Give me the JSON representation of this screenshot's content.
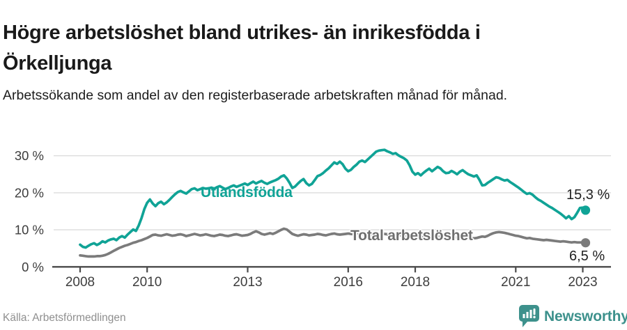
{
  "header": {
    "title": "Högre arbetslöshet bland utrikes- än inrikesfödda i Örkelljunga",
    "subtitle": "Arbetssökande som andel av den registerbaserade arbetskraften månad för månad."
  },
  "footer": {
    "source": "Källa: Arbetsförmedlingen",
    "brand_name": "Newsworthy",
    "brand_icon": "newsworthy-speech-bubble-bar-chart-icon"
  },
  "colors": {
    "series1": "#10a396",
    "series2": "#7b7b7b",
    "grid": "#dcdcdc",
    "axis": "#4a4a4a",
    "tick_text": "#3d3d3d",
    "brand": "#3d918c",
    "title_text": "#1a1a1a",
    "source_text": "#8f8f8f"
  },
  "chart_data": {
    "type": "line",
    "title": "Högre arbetslöshet bland utrikes- än inrikesfödda i Örkelljunga",
    "subtitle": "Arbetssökande som andel av den registerbaserade arbetskraften månad för månad.",
    "unit": "%",
    "x_start": 2008.0,
    "x_end": 2023.083,
    "points_per_year": 12,
    "x_ticks": [
      2008,
      2010,
      2013,
      2016,
      2018,
      2021,
      2023
    ],
    "x_tick_labels": [
      "2008",
      "2010",
      "2013",
      "2016",
      "2018",
      "2021",
      "2023"
    ],
    "y_ticks": [
      0,
      10,
      20,
      30
    ],
    "y_tick_labels": [
      "0 %",
      "10 %",
      "20 %",
      "30 %"
    ],
    "ylim": [
      0,
      33
    ],
    "grid": "horizontal",
    "legend_position": "inline-labels",
    "series": [
      {
        "name": "Utlandsfödda",
        "color": "#10a396",
        "end_label": "15,3 %",
        "end_value": 15.3,
        "values": [
          6.0,
          5.4,
          5.2,
          5.7,
          6.1,
          6.4,
          5.9,
          6.3,
          6.9,
          6.6,
          7.1,
          7.4,
          7.6,
          7.2,
          7.9,
          8.3,
          7.9,
          8.7,
          9.4,
          10.1,
          9.7,
          11.2,
          13.2,
          15.6,
          17.3,
          18.2,
          17.1,
          16.4,
          17.2,
          17.6,
          16.9,
          17.4,
          18.1,
          18.9,
          19.6,
          20.2,
          20.5,
          20.1,
          19.8,
          20.4,
          21.0,
          21.2,
          20.7,
          21.0,
          21.3,
          21.1,
          21.2,
          21.4,
          21.1,
          21.5,
          21.8,
          21.4,
          21.0,
          21.3,
          21.7,
          22.0,
          21.6,
          21.9,
          22.2,
          22.5,
          22.1,
          22.6,
          23.0,
          22.5,
          22.9,
          23.2,
          22.7,
          22.4,
          22.8,
          23.1,
          23.4,
          23.8,
          24.4,
          24.7,
          23.9,
          22.7,
          21.3,
          21.7,
          22.5,
          23.2,
          23.7,
          22.6,
          22.0,
          22.4,
          23.4,
          24.5,
          24.8,
          25.3,
          26.0,
          26.6,
          27.4,
          28.2,
          27.8,
          28.4,
          27.7,
          26.5,
          25.8,
          26.2,
          27.0,
          27.6,
          28.4,
          28.7,
          28.3,
          29.0,
          29.7,
          30.4,
          31.1,
          31.4,
          31.5,
          31.6,
          31.2,
          30.9,
          30.5,
          30.7,
          30.1,
          29.7,
          29.3,
          28.7,
          27.4,
          25.7,
          24.9,
          25.3,
          24.7,
          25.4,
          26.0,
          26.5,
          25.8,
          26.4,
          27.0,
          26.6,
          25.8,
          25.3,
          25.4,
          25.9,
          25.5,
          25.0,
          25.7,
          26.1,
          25.5,
          25.0,
          24.7,
          24.4,
          24.7,
          23.5,
          22.0,
          22.1,
          22.7,
          23.2,
          23.7,
          24.2,
          24.0,
          23.6,
          23.3,
          23.5,
          22.9,
          22.4,
          21.9,
          21.4,
          20.8,
          20.2,
          19.7,
          19.9,
          19.5,
          18.8,
          18.2,
          17.8,
          17.3,
          16.8,
          16.3,
          15.9,
          15.4,
          14.9,
          14.4,
          13.8,
          13.1,
          13.7,
          12.9,
          13.4,
          14.6,
          15.9,
          16.0,
          15.3
        ]
      },
      {
        "name": "Total arbetslöshet",
        "color": "#7b7b7b",
        "end_label": "6,5 %",
        "end_value": 6.5,
        "values": [
          3.1,
          3.0,
          2.9,
          2.8,
          2.8,
          2.8,
          2.9,
          2.9,
          3.0,
          3.2,
          3.5,
          3.9,
          4.3,
          4.7,
          5.1,
          5.4,
          5.7,
          5.9,
          6.2,
          6.5,
          6.7,
          7.0,
          7.2,
          7.5,
          7.8,
          8.2,
          8.6,
          8.7,
          8.5,
          8.4,
          8.6,
          8.8,
          8.6,
          8.4,
          8.5,
          8.7,
          8.8,
          8.6,
          8.3,
          8.5,
          8.7,
          8.9,
          8.7,
          8.5,
          8.6,
          8.8,
          8.6,
          8.4,
          8.3,
          8.5,
          8.7,
          8.6,
          8.4,
          8.3,
          8.5,
          8.7,
          8.8,
          8.6,
          8.4,
          8.5,
          8.6,
          8.9,
          9.3,
          9.6,
          9.3,
          8.9,
          8.7,
          8.9,
          9.1,
          8.9,
          9.2,
          9.6,
          10.0,
          10.3,
          10.1,
          9.5,
          8.9,
          8.6,
          8.4,
          8.6,
          8.8,
          8.7,
          8.5,
          8.6,
          8.7,
          8.9,
          8.8,
          8.6,
          8.5,
          8.7,
          8.9,
          9.0,
          8.8,
          8.7,
          8.8,
          8.9,
          9.0,
          8.9,
          8.8,
          8.9,
          9.0,
          8.9,
          8.8,
          8.7,
          8.8,
          8.9,
          8.8,
          8.7,
          8.8,
          8.9,
          8.8,
          8.7,
          8.6,
          8.5,
          8.6,
          8.5,
          8.4,
          8.5,
          8.4,
          8.3,
          8.4,
          8.5,
          8.4,
          8.3,
          8.2,
          8.3,
          8.4,
          8.3,
          8.2,
          8.1,
          8.2,
          8.1,
          8.0,
          8.1,
          8.0,
          7.9,
          7.8,
          7.9,
          7.8,
          7.7,
          7.8,
          7.7,
          7.8,
          8.0,
          8.2,
          8.1,
          8.4,
          8.8,
          9.1,
          9.3,
          9.4,
          9.3,
          9.2,
          9.0,
          8.8,
          8.6,
          8.4,
          8.3,
          8.1,
          7.9,
          7.7,
          7.8,
          7.6,
          7.5,
          7.4,
          7.3,
          7.2,
          7.3,
          7.2,
          7.1,
          7.0,
          6.9,
          6.8,
          6.9,
          6.8,
          6.7,
          6.6,
          6.7,
          6.6,
          6.6,
          6.6,
          6.5
        ]
      }
    ]
  }
}
